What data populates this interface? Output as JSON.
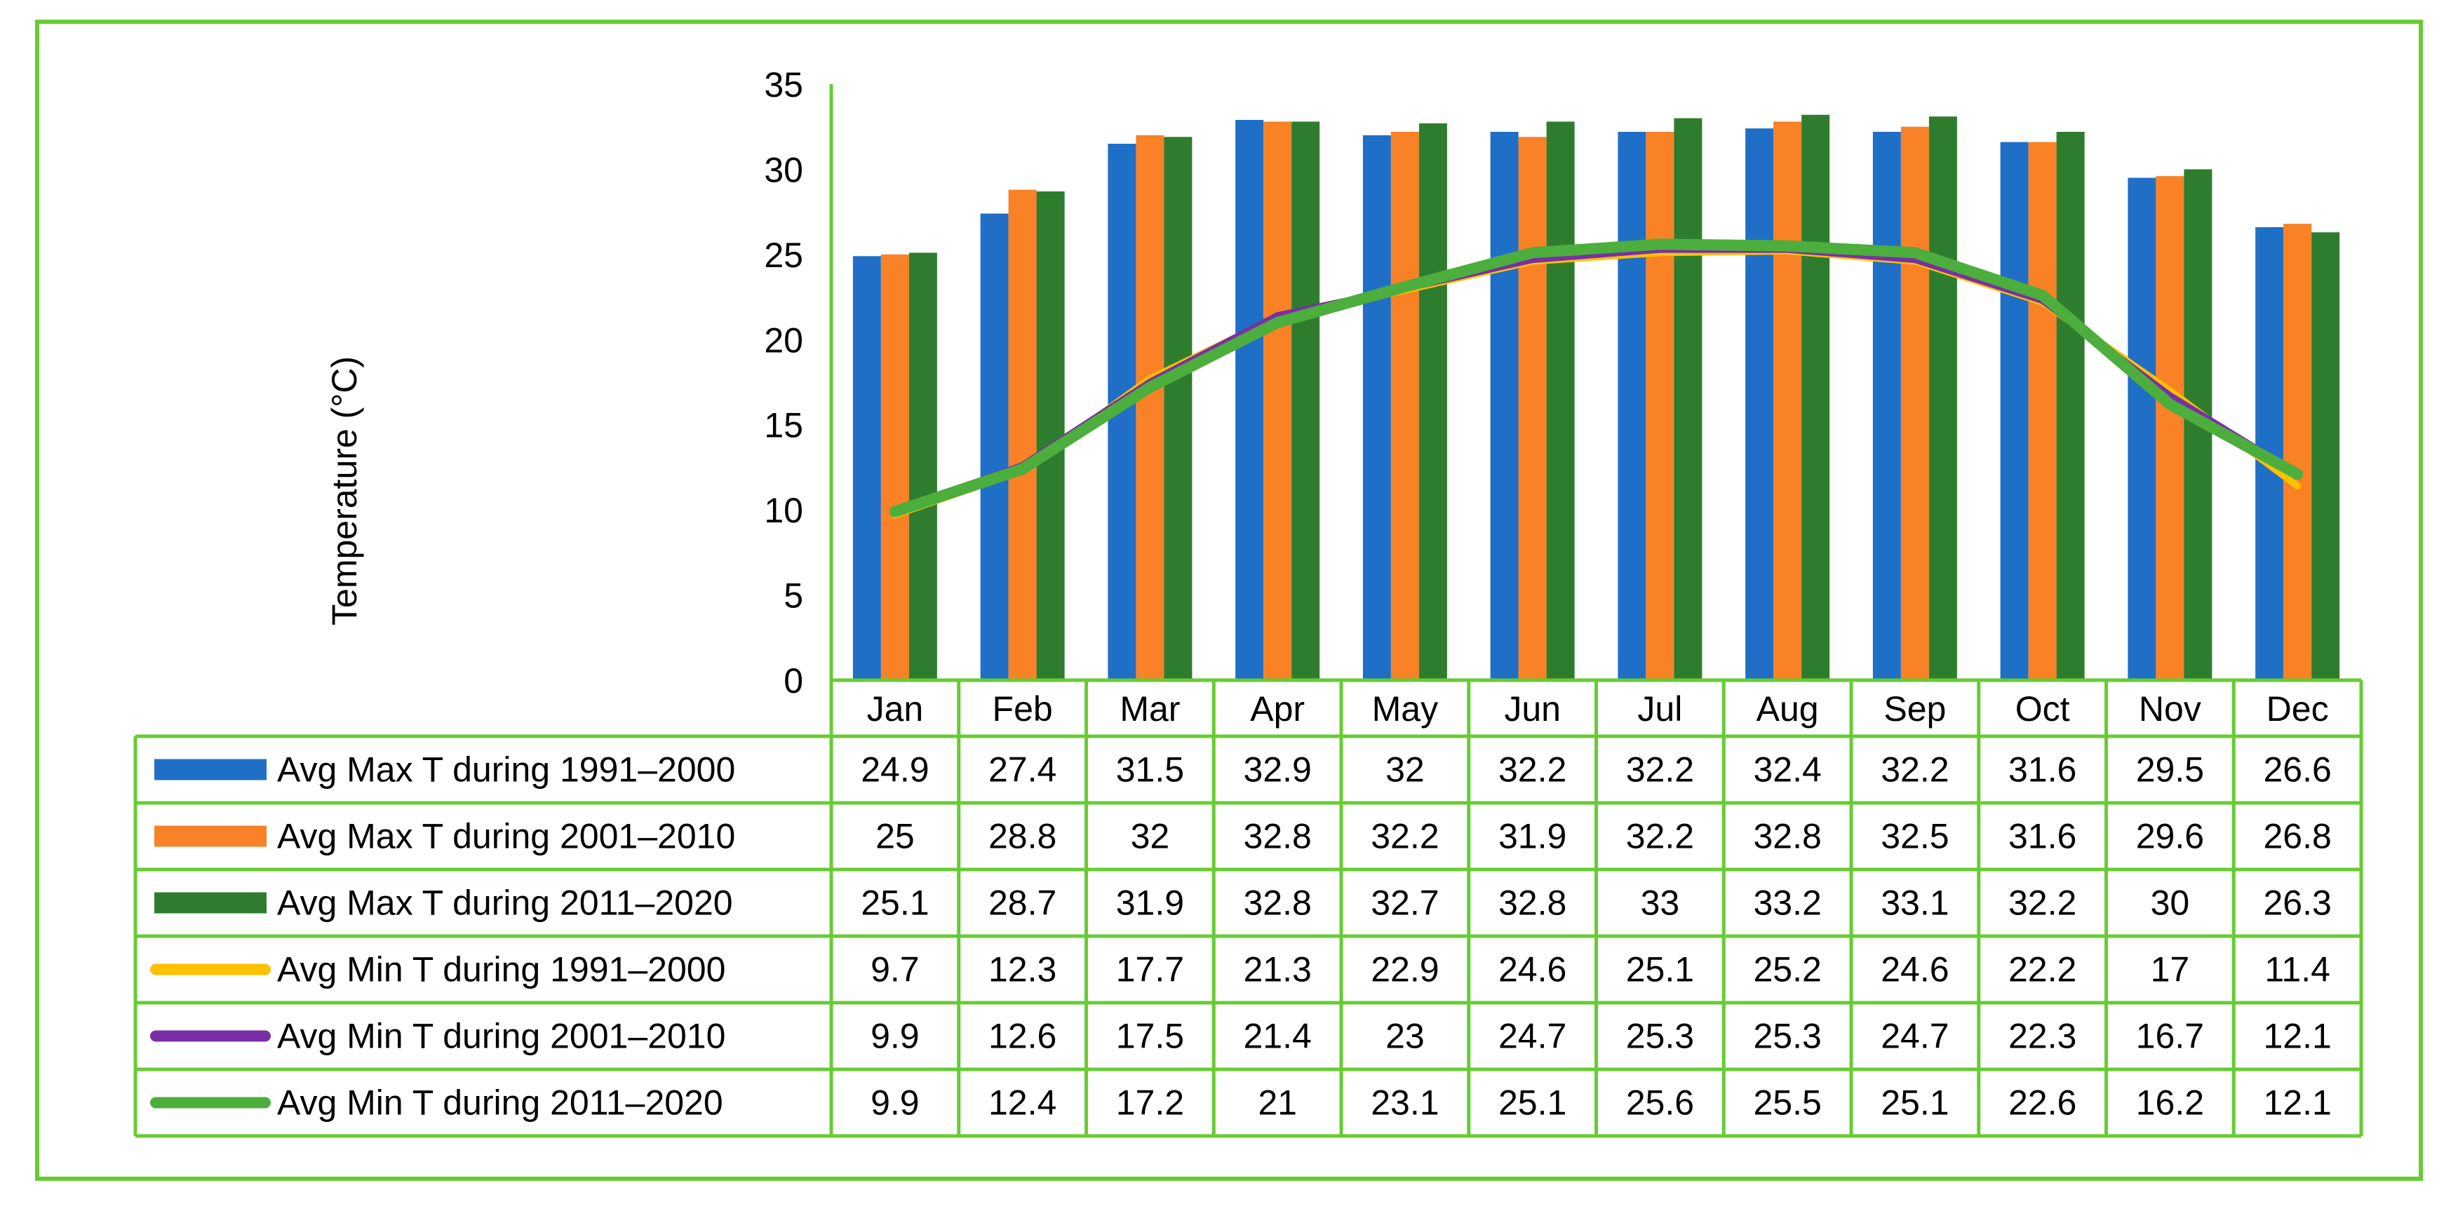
{
  "chart_data": {
    "type": "bar",
    "ylabel": "Temperature (°C)",
    "ylim": [
      0,
      35
    ],
    "yticks": [
      0,
      5,
      10,
      15,
      20,
      25,
      30,
      35
    ],
    "grid": false,
    "categories": [
      "Jan",
      "Feb",
      "Mar",
      "Apr",
      "May",
      "Jun",
      "Jul",
      "Aug",
      "Sep",
      "Oct",
      "Nov",
      "Dec"
    ],
    "series": [
      {
        "name": "Avg Max T during 1991–2000",
        "kind": "bar",
        "color": "#1f6fc6",
        "values": [
          24.9,
          27.4,
          31.5,
          32.9,
          32,
          32.2,
          32.2,
          32.4,
          32.2,
          31.6,
          29.5,
          26.6
        ]
      },
      {
        "name": "Avg Max T during 2001–2010",
        "kind": "bar",
        "color": "#f98126",
        "values": [
          25,
          28.8,
          32,
          32.8,
          32.2,
          31.9,
          32.2,
          32.8,
          32.5,
          31.6,
          29.6,
          26.8
        ]
      },
      {
        "name": "Avg Max T during 2011–2020",
        "kind": "bar",
        "color": "#2e7d2e",
        "values": [
          25.1,
          28.7,
          31.9,
          32.8,
          32.7,
          32.8,
          33,
          33.2,
          33.1,
          32.2,
          30,
          26.3
        ]
      },
      {
        "name": "Avg Min T during 1991–2000",
        "kind": "line",
        "color": "#ffc000",
        "values": [
          9.7,
          12.3,
          17.7,
          21.3,
          22.9,
          24.6,
          25.1,
          25.2,
          24.6,
          22.2,
          17,
          11.4
        ]
      },
      {
        "name": "Avg Min T during 2001–2010",
        "kind": "line",
        "color": "#7a2fa6",
        "values": [
          9.9,
          12.6,
          17.5,
          21.4,
          23,
          24.7,
          25.3,
          25.3,
          24.7,
          22.3,
          16.7,
          12.1
        ]
      },
      {
        "name": "Avg Min T during 2011–2020",
        "kind": "line",
        "color": "#4cae3c",
        "values": [
          9.9,
          12.4,
          17.2,
          21,
          23.1,
          25.1,
          25.6,
          25.5,
          25.1,
          22.6,
          16.2,
          12.1
        ]
      }
    ],
    "colors": {
      "frame": "#66cc33",
      "table_border": "#66cc33",
      "axis": "#66cc33"
    }
  }
}
